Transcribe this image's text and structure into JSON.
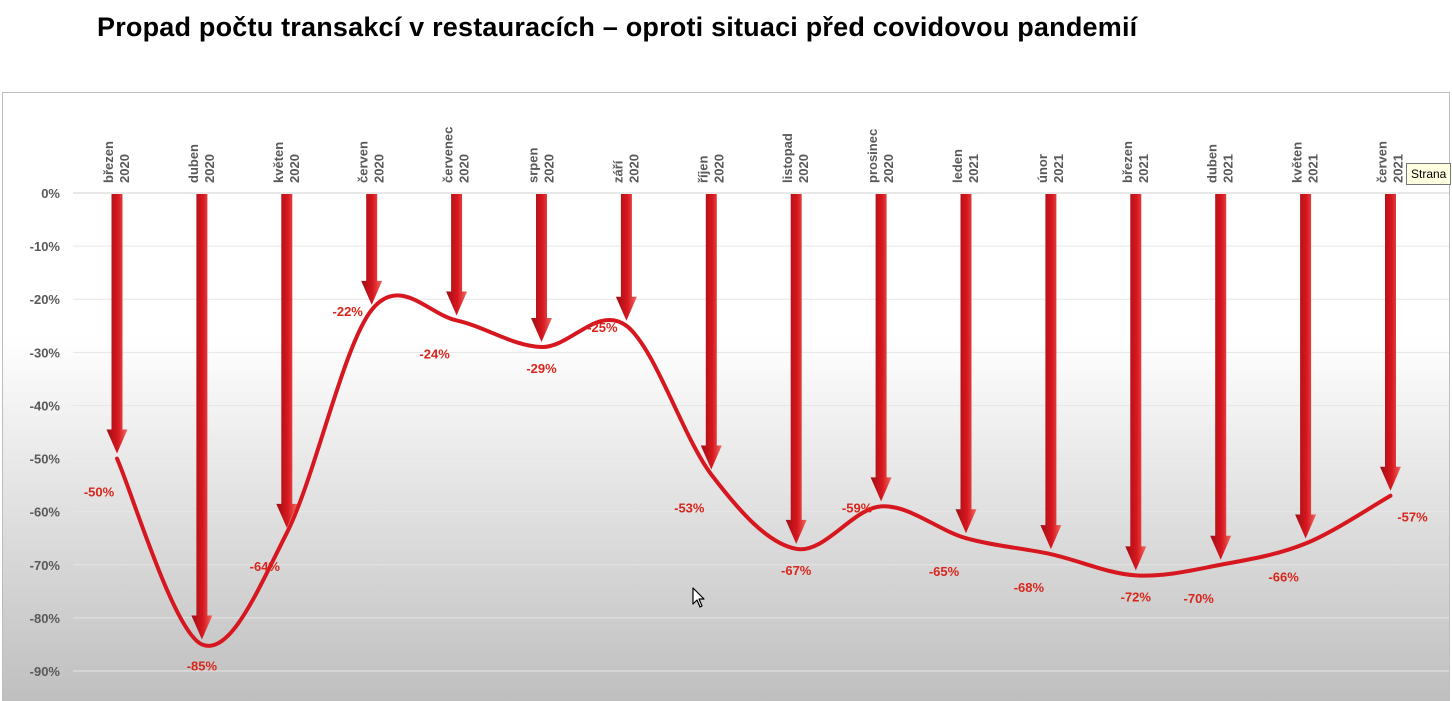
{
  "title": "Propad počtu transakcí v restauracích – oproti situaci před covidovou pandemií",
  "tooltip": "Strana",
  "colors": {
    "accent": "#d7171f",
    "arrow_light": "#f06a60",
    "axis_text": "#595959",
    "label": "#d9261c"
  },
  "chart_data": {
    "type": "line",
    "title": "Propad počtu transakcí v restauracích – oproti situaci před covidovou pandemií",
    "categories": [
      [
        "březen",
        "2020"
      ],
      [
        "duben",
        "2020"
      ],
      [
        "květen",
        "2020"
      ],
      [
        "červen",
        "2020"
      ],
      [
        "červenec",
        "2020"
      ],
      [
        "srpen",
        "2020"
      ],
      [
        "září",
        "2020"
      ],
      [
        "říjen",
        "2020"
      ],
      [
        "listopad",
        "2020"
      ],
      [
        "prosinec",
        "2020"
      ],
      [
        "leden",
        "2021"
      ],
      [
        "únor",
        "2021"
      ],
      [
        "březen",
        "2021"
      ],
      [
        "duben",
        "2021"
      ],
      [
        "květen",
        "2021"
      ],
      [
        "červen",
        "2021"
      ]
    ],
    "values": [
      -50,
      -85,
      -64,
      -22,
      -24,
      -29,
      -25,
      -53,
      -67,
      -59,
      -65,
      -68,
      -72,
      -70,
      -66,
      -57
    ],
    "value_labels": [
      "-50%",
      "-85%",
      "-64%",
      "-22%",
      "-24%",
      "-29%",
      "-25%",
      "-53%",
      "-67%",
      "-59%",
      "-65%",
      "-68%",
      "-72%",
      "-70%",
      "-66%",
      "-57%"
    ],
    "y_ticks": [
      "0%",
      "-10%",
      "-20%",
      "-30%",
      "-40%",
      "-50%",
      "-60%",
      "-70%",
      "-80%",
      "-90%"
    ],
    "ylim": [
      -90,
      0
    ],
    "xlabel": "",
    "ylabel": "",
    "legend": "none",
    "grid": true,
    "smooth": true
  }
}
